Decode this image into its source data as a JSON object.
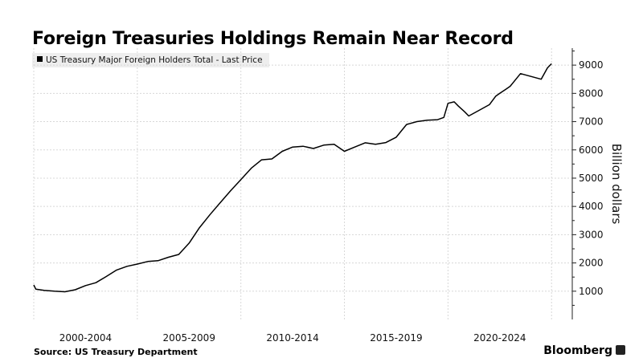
{
  "chart_data": {
    "type": "line",
    "title": "Foreign Treasuries Holdings Remain Near Record",
    "legend": "US Treasury Major Foreign Holders Total - Last Price",
    "ylabel": "Billion dollars",
    "y_ticks": [
      1000,
      2000,
      3000,
      4000,
      5000,
      6000,
      7000,
      8000,
      9000
    ],
    "x_tick_labels": [
      "2000-2004",
      "2005-2009",
      "2010-2014",
      "2015-2019",
      "2020-2024"
    ],
    "ylim": [
      0,
      9600
    ],
    "xlim": [
      2000.0,
      2026.0
    ],
    "y_axis_position": "right",
    "grid": true,
    "series": [
      {
        "name": "US Treasury Major Foreign Holders Total - Last Price",
        "color": "#000000",
        "x": [
          2000.0,
          2000.1,
          2000.5,
          2001.0,
          2001.5,
          2002.0,
          2002.5,
          2003.0,
          2003.5,
          2004.0,
          2004.5,
          2005.0,
          2005.5,
          2006.0,
          2006.5,
          2007.0,
          2007.5,
          2008.0,
          2008.5,
          2009.0,
          2009.5,
          2010.0,
          2010.5,
          2011.0,
          2011.5,
          2012.0,
          2012.5,
          2013.0,
          2013.5,
          2014.0,
          2014.5,
          2015.0,
          2015.5,
          2016.0,
          2016.5,
          2017.0,
          2017.5,
          2018.0,
          2018.5,
          2019.0,
          2019.5,
          2019.8,
          2020.0,
          2020.3,
          2020.5,
          2020.8,
          2021.0,
          2021.5,
          2022.0,
          2022.3,
          2022.5,
          2022.8,
          2023.0,
          2023.5,
          2024.0,
          2024.5,
          2024.8,
          2025.0
        ],
        "values": [
          1220,
          1070,
          1030,
          1000,
          980,
          1050,
          1200,
          1300,
          1520,
          1750,
          1880,
          1960,
          2050,
          2080,
          2200,
          2300,
          2700,
          3250,
          3700,
          4130,
          4550,
          4950,
          5350,
          5650,
          5680,
          5950,
          6100,
          6130,
          6050,
          6170,
          6200,
          5950,
          6100,
          6250,
          6200,
          6260,
          6450,
          6900,
          7000,
          7050,
          7070,
          7150,
          7650,
          7700,
          7550,
          7350,
          7200,
          7400,
          7600,
          7900,
          8000,
          8150,
          8250,
          8700,
          8600,
          8500,
          8900,
          9050
        ]
      }
    ]
  },
  "source": "Source: US Treasury Department",
  "brand": "Bloomberg"
}
